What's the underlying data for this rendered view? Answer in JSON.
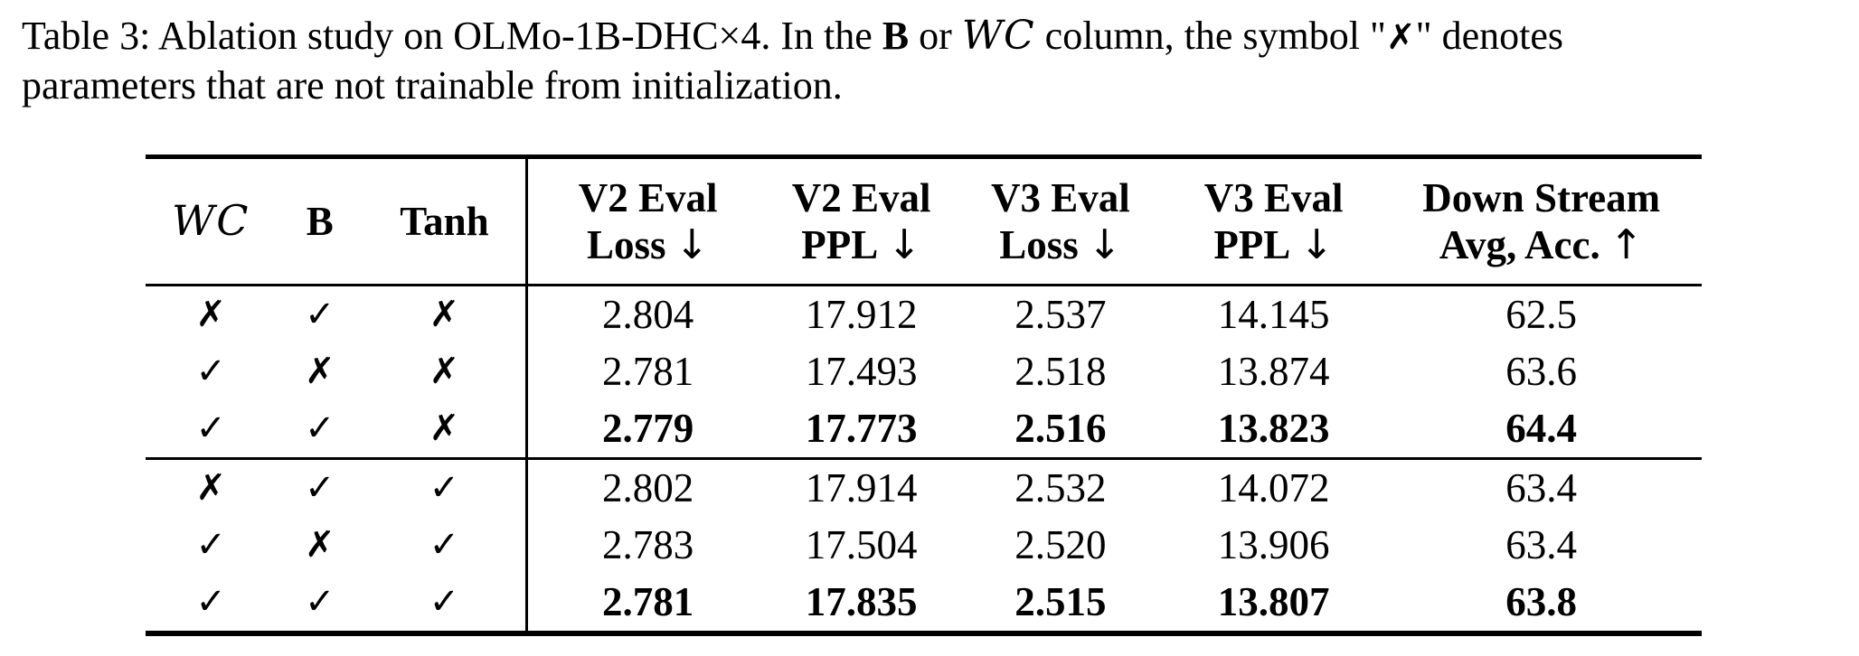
{
  "colors": {
    "text": "#000000",
    "background": "#ffffff"
  },
  "caption": {
    "line1": {
      "pre": "Table 3: Ablation study on OLMo-1B-DHC×4. In the ",
      "b": "B",
      "mid1": " or ",
      "wc": "WC",
      "mid2": " column, the symbol \"",
      "cross": "✗",
      "post": "\" denotes"
    },
    "line2": "parameters that are not trainable from initialization."
  },
  "table": {
    "headers": [
      {
        "label": "WC"
      },
      {
        "label": "B"
      },
      {
        "label": "Tanh"
      },
      {
        "line1": "V2 Eval",
        "line2": "Loss",
        "arrow": "↓"
      },
      {
        "line1": "V2 Eval",
        "line2": "PPL",
        "arrow": "↓"
      },
      {
        "line1": "V3 Eval",
        "line2": "Loss",
        "arrow": "↓"
      },
      {
        "line1": "V3 Eval",
        "line2": "PPL",
        "arrow": "↓"
      },
      {
        "line1": "Down Stream",
        "line2": "Avg, Acc.",
        "arrow": "↑"
      }
    ],
    "groups": [
      {
        "rows": [
          {
            "wc": "✗",
            "b": "✓",
            "tanh": "✗",
            "values": [
              "2.804",
              "17.912",
              "2.537",
              "14.145",
              "62.5"
            ],
            "bold": false
          },
          {
            "wc": "✓",
            "b": "✗",
            "tanh": "✗",
            "values": [
              "2.781",
              "17.493",
              "2.518",
              "13.874",
              "63.6"
            ],
            "bold": false
          },
          {
            "wc": "✓",
            "b": "✓",
            "tanh": "✗",
            "values": [
              "2.779",
              "17.773",
              "2.516",
              "13.823",
              "64.4"
            ],
            "bold": true
          }
        ]
      },
      {
        "rows": [
          {
            "wc": "✗",
            "b": "✓",
            "tanh": "✓",
            "values": [
              "2.802",
              "17.914",
              "2.532",
              "14.072",
              "63.4"
            ],
            "bold": false
          },
          {
            "wc": "✓",
            "b": "✗",
            "tanh": "✓",
            "values": [
              "2.783",
              "17.504",
              "2.520",
              "13.906",
              "63.4"
            ],
            "bold": false
          },
          {
            "wc": "✓",
            "b": "✓",
            "tanh": "✓",
            "values": [
              "2.781",
              "17.835",
              "2.515",
              "13.807",
              "63.8"
            ],
            "bold": true
          }
        ]
      }
    ]
  }
}
